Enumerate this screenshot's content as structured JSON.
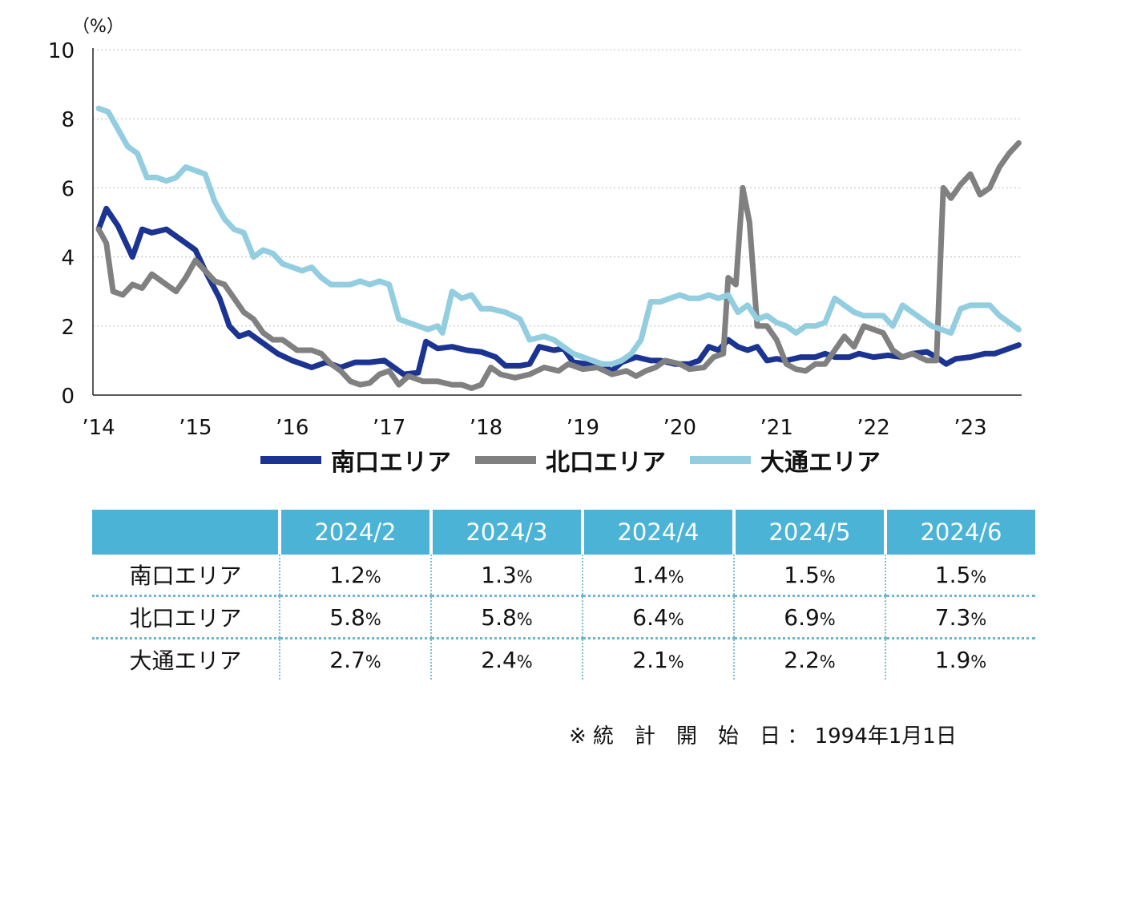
{
  "chart_data": {
    "type": "line",
    "y_unit": "（%）",
    "ylim": [
      0,
      10
    ],
    "yticks": [
      0,
      2,
      4,
      6,
      8,
      10
    ],
    "grid": true,
    "xlim": [
      2014,
      2023.5
    ],
    "xticks": [
      2014,
      2015,
      2016,
      2017,
      2018,
      2019,
      2020,
      2021,
      2022,
      2023
    ],
    "xtick_labels": [
      "’14",
      "’15",
      "’16",
      "’17",
      "’18",
      "’19",
      "’20",
      "’21",
      "’22",
      "’23"
    ],
    "legend_position": "bottom",
    "series": [
      {
        "name": "南口エリア",
        "color": "#1b3491",
        "points": [
          [
            2014.0,
            4.8
          ],
          [
            2014.08,
            5.4
          ],
          [
            2014.2,
            4.9
          ],
          [
            2014.35,
            4.0
          ],
          [
            2014.45,
            4.8
          ],
          [
            2014.55,
            4.7
          ],
          [
            2014.7,
            4.8
          ],
          [
            2014.85,
            4.5
          ],
          [
            2015.0,
            4.2
          ],
          [
            2015.1,
            3.6
          ],
          [
            2015.25,
            2.8
          ],
          [
            2015.35,
            2.0
          ],
          [
            2015.45,
            1.7
          ],
          [
            2015.55,
            1.8
          ],
          [
            2015.7,
            1.5
          ],
          [
            2015.85,
            1.2
          ],
          [
            2016.0,
            1.0
          ],
          [
            2016.1,
            0.9
          ],
          [
            2016.2,
            0.8
          ],
          [
            2016.35,
            0.95
          ],
          [
            2016.5,
            0.8
          ],
          [
            2016.65,
            0.95
          ],
          [
            2016.8,
            0.95
          ],
          [
            2016.95,
            1.0
          ],
          [
            2017.05,
            0.8
          ],
          [
            2017.15,
            0.6
          ],
          [
            2017.3,
            0.65
          ],
          [
            2017.38,
            1.55
          ],
          [
            2017.5,
            1.35
          ],
          [
            2017.65,
            1.4
          ],
          [
            2017.8,
            1.3
          ],
          [
            2017.95,
            1.25
          ],
          [
            2018.1,
            1.1
          ],
          [
            2018.2,
            0.85
          ],
          [
            2018.35,
            0.85
          ],
          [
            2018.45,
            0.9
          ],
          [
            2018.55,
            1.4
          ],
          [
            2018.7,
            1.3
          ],
          [
            2018.8,
            1.35
          ],
          [
            2018.9,
            0.95
          ],
          [
            2019.05,
            0.9
          ],
          [
            2019.2,
            0.85
          ],
          [
            2019.3,
            0.7
          ],
          [
            2019.4,
            0.95
          ],
          [
            2019.55,
            1.1
          ],
          [
            2019.7,
            1.0
          ],
          [
            2019.8,
            1.0
          ],
          [
            2019.95,
            0.9
          ],
          [
            2020.1,
            0.9
          ],
          [
            2020.2,
            1.0
          ],
          [
            2020.3,
            1.4
          ],
          [
            2020.4,
            1.3
          ],
          [
            2020.5,
            1.6
          ],
          [
            2020.6,
            1.4
          ],
          [
            2020.7,
            1.3
          ],
          [
            2020.8,
            1.4
          ],
          [
            2020.9,
            1.0
          ],
          [
            2021.0,
            1.05
          ],
          [
            2021.1,
            1.0
          ],
          [
            2021.25,
            1.1
          ],
          [
            2021.4,
            1.1
          ],
          [
            2021.5,
            1.2
          ],
          [
            2021.6,
            1.1
          ],
          [
            2021.75,
            1.1
          ],
          [
            2021.85,
            1.2
          ],
          [
            2022.0,
            1.1
          ],
          [
            2022.15,
            1.15
          ],
          [
            2022.3,
            1.1
          ],
          [
            2022.4,
            1.2
          ],
          [
            2022.55,
            1.25
          ],
          [
            2022.65,
            1.1
          ],
          [
            2022.75,
            0.9
          ],
          [
            2022.85,
            1.05
          ],
          [
            2023.0,
            1.1
          ],
          [
            2023.15,
            1.2
          ],
          [
            2023.25,
            1.2
          ],
          [
            2023.35,
            1.3
          ],
          [
            2023.5,
            1.45
          ]
        ]
      },
      {
        "name": "北口エリア",
        "color": "#808080",
        "points": [
          [
            2014.0,
            4.8
          ],
          [
            2014.08,
            4.4
          ],
          [
            2014.15,
            3.0
          ],
          [
            2014.25,
            2.9
          ],
          [
            2014.35,
            3.2
          ],
          [
            2014.45,
            3.1
          ],
          [
            2014.55,
            3.5
          ],
          [
            2014.7,
            3.2
          ],
          [
            2014.8,
            3.0
          ],
          [
            2014.9,
            3.4
          ],
          [
            2015.0,
            3.9
          ],
          [
            2015.1,
            3.6
          ],
          [
            2015.2,
            3.3
          ],
          [
            2015.3,
            3.2
          ],
          [
            2015.4,
            2.8
          ],
          [
            2015.5,
            2.4
          ],
          [
            2015.6,
            2.2
          ],
          [
            2015.7,
            1.8
          ],
          [
            2015.8,
            1.6
          ],
          [
            2015.9,
            1.6
          ],
          [
            2016.05,
            1.3
          ],
          [
            2016.2,
            1.3
          ],
          [
            2016.3,
            1.2
          ],
          [
            2016.4,
            0.9
          ],
          [
            2016.5,
            0.7
          ],
          [
            2016.6,
            0.4
          ],
          [
            2016.7,
            0.3
          ],
          [
            2016.8,
            0.35
          ],
          [
            2016.9,
            0.6
          ],
          [
            2017.0,
            0.7
          ],
          [
            2017.1,
            0.3
          ],
          [
            2017.2,
            0.55
          ],
          [
            2017.35,
            0.4
          ],
          [
            2017.5,
            0.4
          ],
          [
            2017.65,
            0.3
          ],
          [
            2017.75,
            0.3
          ],
          [
            2017.85,
            0.2
          ],
          [
            2017.95,
            0.3
          ],
          [
            2018.05,
            0.8
          ],
          [
            2018.15,
            0.6
          ],
          [
            2018.3,
            0.5
          ],
          [
            2018.45,
            0.6
          ],
          [
            2018.6,
            0.8
          ],
          [
            2018.75,
            0.7
          ],
          [
            2018.85,
            0.9
          ],
          [
            2019.0,
            0.75
          ],
          [
            2019.15,
            0.8
          ],
          [
            2019.3,
            0.6
          ],
          [
            2019.45,
            0.7
          ],
          [
            2019.55,
            0.55
          ],
          [
            2019.65,
            0.7
          ],
          [
            2019.75,
            0.8
          ],
          [
            2019.85,
            1.0
          ],
          [
            2020.0,
            0.9
          ],
          [
            2020.1,
            0.75
          ],
          [
            2020.25,
            0.8
          ],
          [
            2020.35,
            1.1
          ],
          [
            2020.45,
            1.2
          ],
          [
            2020.5,
            3.4
          ],
          [
            2020.58,
            3.2
          ],
          [
            2020.65,
            6.0
          ],
          [
            2020.72,
            5.0
          ],
          [
            2020.8,
            2.0
          ],
          [
            2020.9,
            2.0
          ],
          [
            2021.0,
            1.6
          ],
          [
            2021.1,
            0.9
          ],
          [
            2021.2,
            0.75
          ],
          [
            2021.3,
            0.7
          ],
          [
            2021.4,
            0.9
          ],
          [
            2021.5,
            0.9
          ],
          [
            2021.6,
            1.3
          ],
          [
            2021.7,
            1.7
          ],
          [
            2021.8,
            1.4
          ],
          [
            2021.9,
            2.0
          ],
          [
            2022.0,
            1.9
          ],
          [
            2022.1,
            1.8
          ],
          [
            2022.2,
            1.3
          ],
          [
            2022.3,
            1.1
          ],
          [
            2022.4,
            1.2
          ],
          [
            2022.55,
            1.0
          ],
          [
            2022.65,
            1.0
          ],
          [
            2022.72,
            6.0
          ],
          [
            2022.8,
            5.7
          ],
          [
            2022.9,
            6.1
          ],
          [
            2023.0,
            6.4
          ],
          [
            2023.1,
            5.8
          ],
          [
            2023.2,
            6.0
          ],
          [
            2023.3,
            6.6
          ],
          [
            2023.4,
            7.0
          ],
          [
            2023.5,
            7.3
          ]
        ]
      },
      {
        "name": "大通エリア",
        "color": "#92cde0",
        "points": [
          [
            2014.0,
            8.3
          ],
          [
            2014.1,
            8.2
          ],
          [
            2014.2,
            7.7
          ],
          [
            2014.3,
            7.2
          ],
          [
            2014.4,
            7.0
          ],
          [
            2014.5,
            6.3
          ],
          [
            2014.6,
            6.3
          ],
          [
            2014.7,
            6.2
          ],
          [
            2014.8,
            6.3
          ],
          [
            2014.9,
            6.6
          ],
          [
            2015.0,
            6.5
          ],
          [
            2015.1,
            6.4
          ],
          [
            2015.2,
            5.6
          ],
          [
            2015.3,
            5.1
          ],
          [
            2015.4,
            4.8
          ],
          [
            2015.5,
            4.7
          ],
          [
            2015.6,
            4.0
          ],
          [
            2015.7,
            4.2
          ],
          [
            2015.8,
            4.1
          ],
          [
            2015.9,
            3.8
          ],
          [
            2016.0,
            3.7
          ],
          [
            2016.1,
            3.6
          ],
          [
            2016.2,
            3.7
          ],
          [
            2016.3,
            3.4
          ],
          [
            2016.4,
            3.2
          ],
          [
            2016.5,
            3.2
          ],
          [
            2016.6,
            3.2
          ],
          [
            2016.7,
            3.3
          ],
          [
            2016.8,
            3.2
          ],
          [
            2016.9,
            3.3
          ],
          [
            2017.0,
            3.2
          ],
          [
            2017.1,
            2.2
          ],
          [
            2017.2,
            2.1
          ],
          [
            2017.3,
            2.0
          ],
          [
            2017.4,
            1.9
          ],
          [
            2017.5,
            2.0
          ],
          [
            2017.55,
            1.8
          ],
          [
            2017.65,
            3.0
          ],
          [
            2017.75,
            2.8
          ],
          [
            2017.85,
            2.9
          ],
          [
            2017.95,
            2.5
          ],
          [
            2018.05,
            2.5
          ],
          [
            2018.2,
            2.4
          ],
          [
            2018.35,
            2.2
          ],
          [
            2018.45,
            1.6
          ],
          [
            2018.6,
            1.7
          ],
          [
            2018.7,
            1.6
          ],
          [
            2018.8,
            1.4
          ],
          [
            2018.9,
            1.2
          ],
          [
            2019.0,
            1.1
          ],
          [
            2019.1,
            1.0
          ],
          [
            2019.2,
            0.9
          ],
          [
            2019.3,
            0.9
          ],
          [
            2019.4,
            1.0
          ],
          [
            2019.5,
            1.2
          ],
          [
            2019.6,
            1.6
          ],
          [
            2019.7,
            2.7
          ],
          [
            2019.8,
            2.7
          ],
          [
            2019.9,
            2.8
          ],
          [
            2020.0,
            2.9
          ],
          [
            2020.1,
            2.8
          ],
          [
            2020.2,
            2.8
          ],
          [
            2020.3,
            2.9
          ],
          [
            2020.4,
            2.8
          ],
          [
            2020.5,
            2.9
          ],
          [
            2020.6,
            2.4
          ],
          [
            2020.7,
            2.6
          ],
          [
            2020.8,
            2.2
          ],
          [
            2020.9,
            2.3
          ],
          [
            2021.0,
            2.1
          ],
          [
            2021.1,
            2.0
          ],
          [
            2021.2,
            1.8
          ],
          [
            2021.3,
            2.0
          ],
          [
            2021.4,
            2.0
          ],
          [
            2021.5,
            2.1
          ],
          [
            2021.6,
            2.8
          ],
          [
            2021.7,
            2.6
          ],
          [
            2021.8,
            2.4
          ],
          [
            2021.9,
            2.3
          ],
          [
            2022.0,
            2.3
          ],
          [
            2022.1,
            2.3
          ],
          [
            2022.2,
            2.0
          ],
          [
            2022.3,
            2.6
          ],
          [
            2022.4,
            2.4
          ],
          [
            2022.5,
            2.2
          ],
          [
            2022.6,
            2.0
          ],
          [
            2022.7,
            1.9
          ],
          [
            2022.8,
            1.8
          ],
          [
            2022.9,
            2.5
          ],
          [
            2023.0,
            2.6
          ],
          [
            2023.1,
            2.6
          ],
          [
            2023.2,
            2.6
          ],
          [
            2023.3,
            2.3
          ],
          [
            2023.4,
            2.1
          ],
          [
            2023.5,
            1.9
          ]
        ]
      }
    ]
  },
  "table": {
    "columns": [
      "2024/2",
      "2024/3",
      "2024/4",
      "2024/5",
      "2024/6"
    ],
    "rows": [
      {
        "label": "南口エリア",
        "values": [
          "1.2",
          "1.3",
          "1.4",
          "1.5",
          "1.5"
        ]
      },
      {
        "label": "北口エリア",
        "values": [
          "5.8",
          "5.8",
          "6.4",
          "6.9",
          "7.3"
        ]
      },
      {
        "label": "大通エリア",
        "values": [
          "2.7",
          "2.4",
          "2.1",
          "2.2",
          "1.9"
        ]
      }
    ],
    "unit": "%"
  },
  "footnote": "※ 統　計　開　始　日 ： 1994年1月1日"
}
